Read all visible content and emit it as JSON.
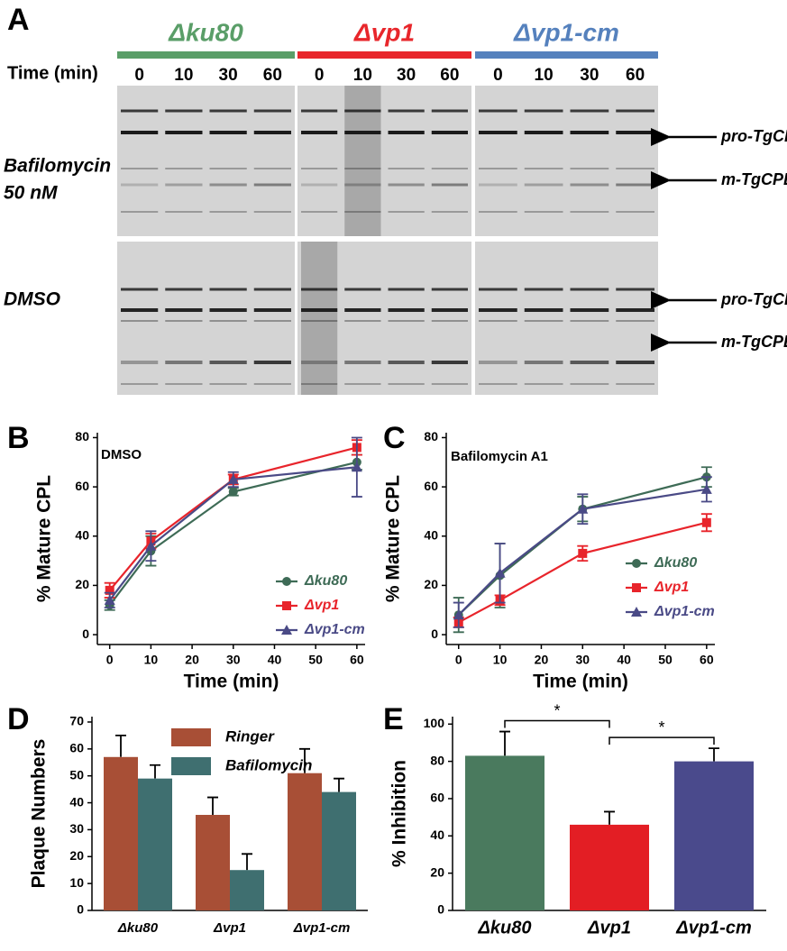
{
  "panel_labels": [
    "A",
    "B",
    "C",
    "D",
    "E"
  ],
  "gel": {
    "strains": [
      "Δku80",
      "Δvp1",
      "Δvp1-cm"
    ],
    "strain_colors": [
      "#5a9e68",
      "#e8262b",
      "#5581bd"
    ],
    "time_label": "Time (min)",
    "lanes": [
      "0",
      "10",
      "30",
      "60"
    ],
    "conditions": [
      [
        "Bafilomycin",
        "50 nM"
      ],
      [
        "DMSO"
      ]
    ],
    "band_labels": [
      "pro-TgCPL",
      "m-TgCPL"
    ]
  },
  "chart_data": [
    {
      "type": "line",
      "annotation": "DMSO",
      "x": [
        0,
        10,
        30,
        60
      ],
      "xlabel": "Time (min)",
      "ylabel": "% Mature CPL",
      "xlim": [
        -3,
        62
      ],
      "ylim": [
        -4,
        82
      ],
      "xticks": [
        0,
        10,
        20,
        30,
        40,
        50,
        60
      ],
      "yticks": [
        0,
        20,
        40,
        60,
        80
      ],
      "series": [
        {
          "name": "Δku80",
          "color": "#3e6b56",
          "marker": "circle",
          "values": [
            12,
            34,
            58,
            70
          ],
          "errors": [
            2,
            6,
            1.5,
            3
          ]
        },
        {
          "name": "Δvp1",
          "color": "#e8242b",
          "marker": "square",
          "values": [
            18,
            38,
            63,
            76
          ],
          "errors": [
            3,
            3,
            2,
            3
          ]
        },
        {
          "name": "Δvp1-cm",
          "color": "#4a4a86",
          "marker": "triangle",
          "values": [
            14,
            36,
            63,
            68
          ],
          "errors": [
            3,
            6,
            3,
            12
          ]
        }
      ]
    },
    {
      "type": "line",
      "annotation": "Bafilomycin A1",
      "x": [
        0,
        10,
        30,
        60
      ],
      "xlabel": "Time (min)",
      "ylabel": "% Mature CPL",
      "xlim": [
        -3,
        62
      ],
      "ylim": [
        -4,
        82
      ],
      "xticks": [
        0,
        10,
        20,
        30,
        40,
        50,
        60
      ],
      "yticks": [
        0,
        20,
        40,
        60,
        80
      ],
      "series": [
        {
          "name": "Δku80",
          "color": "#3e6b56",
          "marker": "circle",
          "values": [
            8,
            24,
            51,
            64
          ],
          "errors": [
            7,
            13,
            5,
            4
          ]
        },
        {
          "name": "Δvp1",
          "color": "#e8242b",
          "marker": "square",
          "values": [
            5,
            14,
            33,
            45.5
          ],
          "errors": [
            2,
            2,
            3,
            3.5
          ]
        },
        {
          "name": "Δvp1-cm",
          "color": "#4a4a86",
          "marker": "triangle",
          "values": [
            8,
            25,
            51,
            59
          ],
          "errors": [
            5,
            12,
            6,
            5
          ]
        }
      ]
    },
    {
      "type": "bar",
      "categories": [
        "Δku80",
        "Δvp1",
        "Δvp1-cm"
      ],
      "ylabel": "Plaque Numbers",
      "ylim": [
        0,
        72
      ],
      "yticks": [
        0,
        10,
        20,
        30,
        40,
        50,
        60,
        70
      ],
      "series": [
        {
          "name": "Ringer",
          "color": "#a84f36",
          "values": [
            57,
            35.5,
            51
          ],
          "errors": [
            8,
            6.5,
            9
          ]
        },
        {
          "name": "Bafilomycin",
          "color": "#3f6f70",
          "values": [
            49,
            15,
            44
          ],
          "errors": [
            5,
            6,
            5
          ]
        }
      ]
    },
    {
      "type": "bar",
      "categories": [
        "Δku80",
        "Δvp1",
        "Δvp1-cm"
      ],
      "ylabel": "% Inhibition",
      "ylim": [
        0,
        104
      ],
      "yticks": [
        0,
        20,
        40,
        60,
        80,
        100
      ],
      "significance": [
        "*",
        "*"
      ],
      "series": [
        {
          "colors": [
            "#4a7a5e",
            "#e31e24",
            "#4a4a8c"
          ],
          "values": [
            83,
            46,
            80
          ],
          "errors": [
            13,
            7,
            7
          ]
        }
      ]
    }
  ]
}
